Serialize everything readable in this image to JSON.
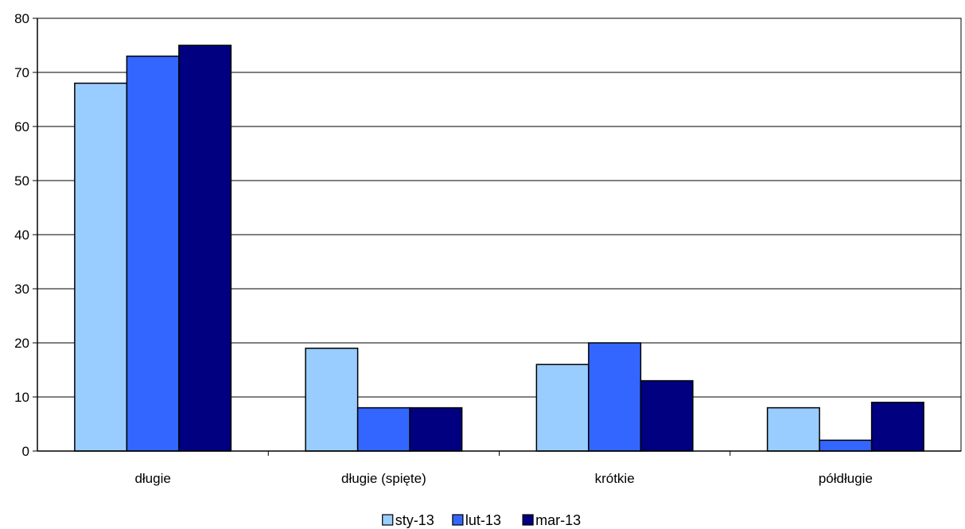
{
  "chart_data": {
    "type": "bar",
    "title": "",
    "xlabel": "",
    "ylabel": "",
    "categories": [
      "długie",
      "długie (spięte)",
      "krótkie",
      "półdługie"
    ],
    "series": [
      {
        "name": "sty-13",
        "color": "#99ccff",
        "values": [
          68,
          19,
          16,
          8
        ]
      },
      {
        "name": "lut-13",
        "color": "#3366ff",
        "values": [
          73,
          8,
          20,
          2
        ]
      },
      {
        "name": "mar-13",
        "color": "#000080",
        "values": [
          75,
          8,
          13,
          9
        ]
      }
    ],
    "ylim": [
      0,
      80
    ],
    "yticks": [
      0,
      10,
      20,
      30,
      40,
      50,
      60,
      70,
      80
    ],
    "grid": true,
    "legend_position": "bottom-center"
  }
}
